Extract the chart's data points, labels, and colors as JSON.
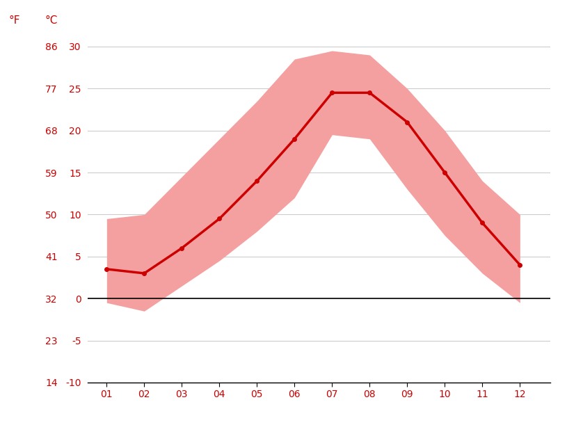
{
  "months": [
    1,
    2,
    3,
    4,
    5,
    6,
    7,
    8,
    9,
    10,
    11,
    12
  ],
  "month_labels": [
    "01",
    "02",
    "03",
    "04",
    "05",
    "06",
    "07",
    "08",
    "09",
    "10",
    "11",
    "12"
  ],
  "mean_temp_c": [
    3.5,
    3.0,
    6.0,
    9.5,
    14.0,
    19.0,
    24.5,
    24.5,
    21.0,
    15.0,
    9.0,
    4.0
  ],
  "max_temp_c": [
    9.5,
    10.0,
    14.5,
    19.0,
    23.5,
    28.5,
    29.5,
    29.0,
    25.0,
    20.0,
    14.0,
    10.0
  ],
  "min_temp_c": [
    -0.5,
    -1.5,
    1.5,
    4.5,
    8.0,
    12.0,
    19.5,
    19.0,
    13.0,
    7.5,
    3.0,
    -0.5
  ],
  "ylim_c": [
    -10,
    32
  ],
  "yticks_c": [
    -10,
    -5,
    0,
    5,
    10,
    15,
    20,
    25,
    30
  ],
  "yticks_f": [
    14,
    23,
    32,
    41,
    50,
    59,
    68,
    77,
    86
  ],
  "mean_line_color": "#cc0000",
  "band_color": "#f5a0a0",
  "band_alpha": 1.0,
  "zero_line_color": "#000000",
  "grid_color": "#cccccc",
  "axis_label_color": "#cc0000",
  "tick_label_color": "#cc0000",
  "background_color": "#ffffff",
  "line_width": 2.5,
  "marker": "o",
  "marker_size": 4,
  "xlabel_color": "#cc0000"
}
